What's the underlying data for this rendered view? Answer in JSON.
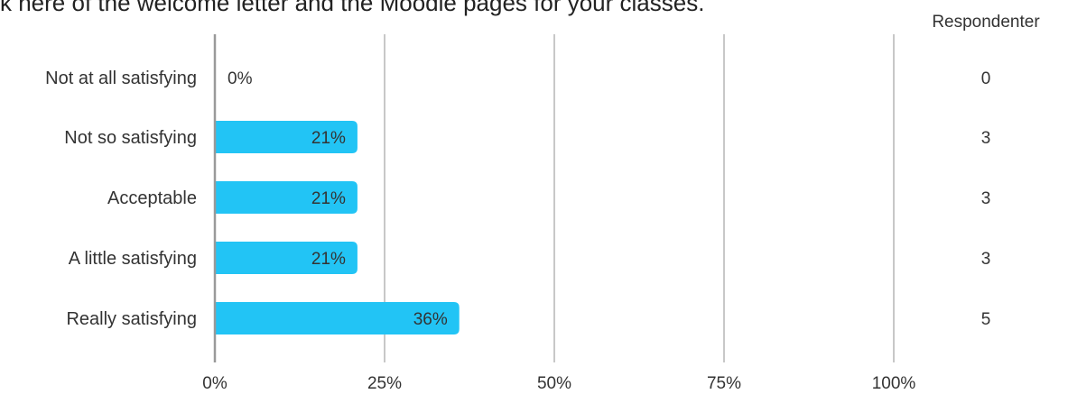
{
  "title": "k here of the welcome letter and the Moodle pages for your classes.",
  "respondents_header": "Respondenter",
  "colors": {
    "bar": "#22c4f5",
    "grid": "#aaaaaa",
    "axis": "#999999",
    "text": "#333333"
  },
  "chart_data": {
    "type": "bar",
    "orientation": "horizontal",
    "categories": [
      "Not at all satisfying",
      "Not so satisfying",
      "Acceptable",
      "A little satisfying",
      "Really satisfying"
    ],
    "values": [
      0,
      21,
      21,
      21,
      36
    ],
    "value_labels": [
      "0%",
      "21%",
      "21%",
      "21%",
      "36%"
    ],
    "respondents": [
      "0",
      "3",
      "3",
      "3",
      "5"
    ],
    "xlim": [
      0,
      100
    ],
    "xticks": [
      0,
      25,
      50,
      75,
      100
    ],
    "xtick_labels": [
      "0%",
      "25%",
      "50%",
      "75%",
      "100%"
    ],
    "grid": true
  }
}
